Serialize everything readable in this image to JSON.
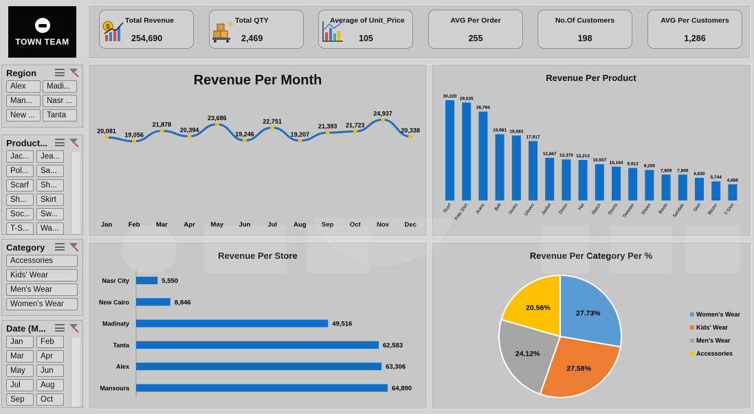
{
  "logo_text": "TOWN TEAM",
  "slicers": {
    "region": {
      "title": "Region",
      "items": [
        "Alex",
        "Madi...",
        "Man...",
        "Nasr ...",
        "New ...",
        "Tanta"
      ]
    },
    "product": {
      "title": "Product...",
      "items": [
        "Jac...",
        "Jea...",
        "Pol...",
        "Sa...",
        "Scarf",
        "Sh...",
        "Sh...",
        "Skirt",
        "Soc...",
        "Sw...",
        "T-S...",
        "Wa..."
      ]
    },
    "category": {
      "title": "Category",
      "items": [
        "Accessories",
        "Kids' Wear",
        "Men's Wear",
        "Women's Wear"
      ]
    },
    "date": {
      "title": "Date (M...",
      "items": [
        "Jan",
        "Feb",
        "Mar",
        "Apr",
        "May",
        "Jun",
        "Jul",
        "Aug",
        "Sep",
        "Oct"
      ]
    }
  },
  "kpis": [
    {
      "label": "Total Revenue",
      "value": "254,690",
      "icon": "money-chart-icon"
    },
    {
      "label": "Total QTY",
      "value": "2,469",
      "icon": "boxes-icon"
    },
    {
      "label": "Average of Unit_Price",
      "value": "105",
      "icon": "bar-chart-icon"
    },
    {
      "label": "AVG Per Order",
      "value": "255"
    },
    {
      "label": "No.Of Customers",
      "value": "198"
    },
    {
      "label": "AVG Per Customers",
      "value": "1,286"
    }
  ],
  "colors": {
    "bar": "#0f6fc6",
    "line": "#1f6ebf",
    "marker": "#f2c200",
    "women": "#5b9bd5",
    "kids": "#ed7d31",
    "men": "#a5a5a5",
    "accessories": "#ffc000"
  },
  "chart_data": [
    {
      "type": "line",
      "title": "Revenue Per Month",
      "categories": [
        "Jan",
        "Feb",
        "Mar",
        "Apr",
        "May",
        "Jun",
        "Jul",
        "Aug",
        "Sep",
        "Oct",
        "Nov",
        "Dec"
      ],
      "values": [
        20081,
        19056,
        21878,
        20394,
        23686,
        19246,
        22751,
        19207,
        21393,
        21723,
        24937,
        20338
      ],
      "labels": [
        "20,081",
        "19,056",
        "21,878",
        "20,394",
        "23,686",
        "19,246",
        "22,751",
        "19,207",
        "21,393",
        "21,723",
        "24,937",
        "20,338"
      ]
    },
    {
      "type": "bar",
      "title": "Revenue Per Product",
      "categories": [
        "Scarf",
        "Polo Shirt",
        "Jeans",
        "Belt",
        "Socks",
        "Gloves",
        "Jacket",
        "Dress",
        "Hat",
        "Watch",
        "Shorts",
        "Sweater",
        "Shoes",
        "Boots",
        "Sandals",
        "Skirt",
        "Blazer",
        "T-Shirt"
      ],
      "values": [
        30220,
        29535,
        26794,
        19981,
        19583,
        17917,
        12867,
        12370,
        12213,
        10937,
        10194,
        9812,
        9200,
        7809,
        7800,
        6830,
        5744,
        4886
      ],
      "labels": [
        "30,220",
        "29,535",
        "26,794",
        "19,981",
        "19,583",
        "17,917",
        "12,867",
        "12,370",
        "12,213",
        "10,937",
        "10,194",
        "9,812",
        "9,200",
        "7,809",
        "7,800",
        "6,830",
        "5,744",
        "4,886"
      ]
    },
    {
      "type": "bar",
      "orientation": "horizontal",
      "title": "Revenue Per Store",
      "categories": [
        "Nasr City",
        "New Cairo",
        "Madinaty",
        "Tanta",
        "Alex",
        "Mansoura"
      ],
      "values": [
        5550,
        8846,
        49516,
        62583,
        63306,
        64890
      ],
      "labels": [
        "5,550",
        "8,846",
        "49,516",
        "62,583",
        "63,306",
        "64,890"
      ]
    },
    {
      "type": "pie",
      "title": "Revenue Per Category Per %",
      "slices": [
        {
          "name": "Women's Wear",
          "value": 27.73,
          "label": "27.73%",
          "color": "#5b9bd5"
        },
        {
          "name": "Kids' Wear",
          "value": 27.58,
          "label": "27.58%",
          "color": "#ed7d31"
        },
        {
          "name": "Men's Wear",
          "value": 24.12,
          "label": "24.12%",
          "color": "#a5a5a5"
        },
        {
          "name": "Accessories",
          "value": 20.56,
          "label": "20.56%",
          "color": "#ffc000"
        }
      ],
      "legend_position": "right"
    }
  ]
}
